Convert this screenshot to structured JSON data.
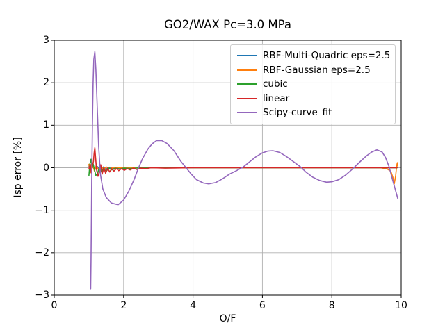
{
  "chart_data": {
    "type": "line",
    "title": "GO2/WAX Pc=3.0 MPa",
    "xlabel": "O/F",
    "ylabel": "Isp error [%]",
    "xlim": [
      0,
      10
    ],
    "ylim": [
      -3,
      3
    ],
    "grid": true,
    "legend_position": "upper right",
    "x_ticks": {
      "values": [
        0,
        2,
        4,
        6,
        8,
        10
      ],
      "labels": [
        "0",
        "2",
        "4",
        "6",
        "8",
        "10"
      ]
    },
    "y_ticks": {
      "values": [
        3,
        2,
        1,
        0,
        -1,
        -2,
        -3
      ],
      "labels": [
        "3",
        "2",
        "1",
        "0",
        "−1",
        "−2",
        "−3"
      ]
    },
    "colors": {
      "grid": "#b0b0b0",
      "spine": "#000000"
    },
    "series": [
      {
        "name": "RBF-Multi-Quadric eps=2.5",
        "color": "#1f77b4",
        "points": [
          [
            1.0,
            0.04
          ],
          [
            1.05,
            -0.06
          ],
          [
            1.1,
            0.05
          ],
          [
            1.16,
            -0.04
          ],
          [
            1.24,
            0.03
          ],
          [
            1.33,
            -0.04
          ],
          [
            1.42,
            0.02
          ],
          [
            1.52,
            -0.03
          ],
          [
            1.62,
            0.01
          ],
          [
            1.75,
            -0.01
          ],
          [
            1.9,
            0.0
          ],
          [
            2.2,
            0.0
          ],
          [
            3.0,
            0.0
          ],
          [
            4.0,
            0.0
          ],
          [
            5.0,
            0.0
          ],
          [
            6.0,
            0.0
          ],
          [
            7.0,
            0.0
          ],
          [
            8.0,
            0.0
          ],
          [
            9.0,
            0.0
          ],
          [
            9.88,
            0.0
          ]
        ]
      },
      {
        "name": "RBF-Gaussian eps=2.5",
        "color": "#ff7f0e",
        "points": [
          [
            1.0,
            0.08
          ],
          [
            1.04,
            -0.12
          ],
          [
            1.08,
            0.12
          ],
          [
            1.12,
            0.03
          ],
          [
            1.16,
            -0.08
          ],
          [
            1.21,
            0.05
          ],
          [
            1.27,
            -0.04
          ],
          [
            1.34,
            0.03
          ],
          [
            1.42,
            -0.03
          ],
          [
            1.5,
            0.02
          ],
          [
            1.6,
            -0.02
          ],
          [
            1.75,
            0.01
          ],
          [
            1.9,
            0.0
          ],
          [
            2.2,
            0.0
          ],
          [
            3.0,
            0.0
          ],
          [
            4.0,
            0.0
          ],
          [
            5.0,
            0.0
          ],
          [
            6.0,
            0.0
          ],
          [
            7.0,
            0.0
          ],
          [
            8.0,
            0.0
          ],
          [
            9.0,
            0.0
          ],
          [
            9.4,
            0.0
          ],
          [
            9.6,
            -0.03
          ],
          [
            9.7,
            -0.08
          ],
          [
            9.76,
            -0.22
          ],
          [
            9.8,
            -0.38
          ],
          [
            9.84,
            -0.2
          ],
          [
            9.87,
            0.05
          ],
          [
            9.89,
            0.12
          ],
          [
            9.9,
            0.04
          ]
        ]
      },
      {
        "name": "cubic",
        "color": "#2ca02c",
        "points": [
          [
            1.0,
            -0.18
          ],
          [
            1.03,
            0.1
          ],
          [
            1.06,
            0.2
          ],
          [
            1.09,
            0.0
          ],
          [
            1.12,
            0.1
          ],
          [
            1.16,
            -0.05
          ],
          [
            1.2,
            -0.18
          ],
          [
            1.25,
            -0.13
          ],
          [
            1.3,
            0.02
          ],
          [
            1.36,
            -0.1
          ],
          [
            1.42,
            -0.02
          ],
          [
            1.5,
            -0.08
          ],
          [
            1.58,
            -0.01
          ],
          [
            1.66,
            -0.05
          ],
          [
            1.76,
            -0.01
          ],
          [
            1.88,
            -0.03
          ],
          [
            2.0,
            -0.01
          ],
          [
            2.2,
            -0.02
          ],
          [
            2.5,
            0.0
          ],
          [
            3.0,
            0.0
          ],
          [
            4.0,
            0.0
          ],
          [
            5.0,
            0.0
          ],
          [
            6.0,
            0.0
          ],
          [
            7.0,
            0.0
          ],
          [
            8.0,
            0.0
          ],
          [
            9.0,
            0.0
          ],
          [
            9.88,
            0.0
          ]
        ]
      },
      {
        "name": "linear",
        "color": "#d62728",
        "points": [
          [
            1.0,
            -0.03
          ],
          [
            1.04,
            0.08
          ],
          [
            1.07,
            -0.12
          ],
          [
            1.1,
            0.05
          ],
          [
            1.13,
            0.15
          ],
          [
            1.15,
            0.35
          ],
          [
            1.17,
            0.47
          ],
          [
            1.19,
            0.25
          ],
          [
            1.22,
            -0.05
          ],
          [
            1.26,
            -0.2
          ],
          [
            1.3,
            -0.1
          ],
          [
            1.34,
            0.07
          ],
          [
            1.38,
            -0.15
          ],
          [
            1.43,
            0.0
          ],
          [
            1.48,
            -0.13
          ],
          [
            1.54,
            -0.01
          ],
          [
            1.6,
            -0.1
          ],
          [
            1.66,
            -0.02
          ],
          [
            1.72,
            -0.08
          ],
          [
            1.79,
            -0.02
          ],
          [
            1.86,
            -0.07
          ],
          [
            1.94,
            -0.02
          ],
          [
            2.02,
            -0.06
          ],
          [
            2.1,
            -0.02
          ],
          [
            2.19,
            -0.05
          ],
          [
            2.28,
            -0.01
          ],
          [
            2.38,
            -0.04
          ],
          [
            2.5,
            -0.01
          ],
          [
            2.65,
            -0.02
          ],
          [
            2.8,
            0.0
          ],
          [
            3.2,
            -0.01
          ],
          [
            4.0,
            0.0
          ],
          [
            5.0,
            0.0
          ],
          [
            6.0,
            0.0
          ],
          [
            7.0,
            0.0
          ],
          [
            8.0,
            0.0
          ],
          [
            9.0,
            0.0
          ],
          [
            9.5,
            0.0
          ],
          [
            9.88,
            0.0
          ]
        ]
      },
      {
        "name": "Scipy-curve_fit",
        "color": "#9467bd",
        "points": [
          [
            1.05,
            -2.85
          ],
          [
            1.06,
            -2.2
          ],
          [
            1.07,
            -1.3
          ],
          [
            1.08,
            -0.3
          ],
          [
            1.1,
            1.0
          ],
          [
            1.12,
            2.0
          ],
          [
            1.14,
            2.55
          ],
          [
            1.17,
            2.73
          ],
          [
            1.2,
            2.3
          ],
          [
            1.24,
            1.4
          ],
          [
            1.28,
            0.5
          ],
          [
            1.33,
            -0.15
          ],
          [
            1.4,
            -0.5
          ],
          [
            1.5,
            -0.7
          ],
          [
            1.65,
            -0.83
          ],
          [
            1.84,
            -0.87
          ],
          [
            2.0,
            -0.76
          ],
          [
            2.15,
            -0.55
          ],
          [
            2.3,
            -0.28
          ],
          [
            2.42,
            -0.02
          ],
          [
            2.55,
            0.22
          ],
          [
            2.7,
            0.44
          ],
          [
            2.82,
            0.56
          ],
          [
            2.95,
            0.64
          ],
          [
            3.1,
            0.64
          ],
          [
            3.25,
            0.57
          ],
          [
            3.45,
            0.4
          ],
          [
            3.65,
            0.15
          ],
          [
            3.8,
            0.0
          ],
          [
            3.95,
            -0.15
          ],
          [
            4.1,
            -0.28
          ],
          [
            4.3,
            -0.36
          ],
          [
            4.45,
            -0.38
          ],
          [
            4.65,
            -0.35
          ],
          [
            4.85,
            -0.26
          ],
          [
            5.05,
            -0.15
          ],
          [
            5.25,
            -0.07
          ],
          [
            5.45,
            0.02
          ],
          [
            5.6,
            0.12
          ],
          [
            5.8,
            0.25
          ],
          [
            6.0,
            0.35
          ],
          [
            6.15,
            0.39
          ],
          [
            6.3,
            0.4
          ],
          [
            6.5,
            0.36
          ],
          [
            6.7,
            0.26
          ],
          [
            6.9,
            0.14
          ],
          [
            7.1,
            0.02
          ],
          [
            7.25,
            -0.1
          ],
          [
            7.45,
            -0.22
          ],
          [
            7.65,
            -0.3
          ],
          [
            7.85,
            -0.34
          ],
          [
            8.0,
            -0.33
          ],
          [
            8.2,
            -0.28
          ],
          [
            8.4,
            -0.17
          ],
          [
            8.6,
            -0.03
          ],
          [
            8.8,
            0.13
          ],
          [
            9.0,
            0.28
          ],
          [
            9.15,
            0.37
          ],
          [
            9.3,
            0.42
          ],
          [
            9.45,
            0.37
          ],
          [
            9.55,
            0.24
          ],
          [
            9.65,
            0.03
          ],
          [
            9.75,
            -0.28
          ],
          [
            9.82,
            -0.48
          ],
          [
            9.9,
            -0.72
          ]
        ]
      }
    ]
  }
}
